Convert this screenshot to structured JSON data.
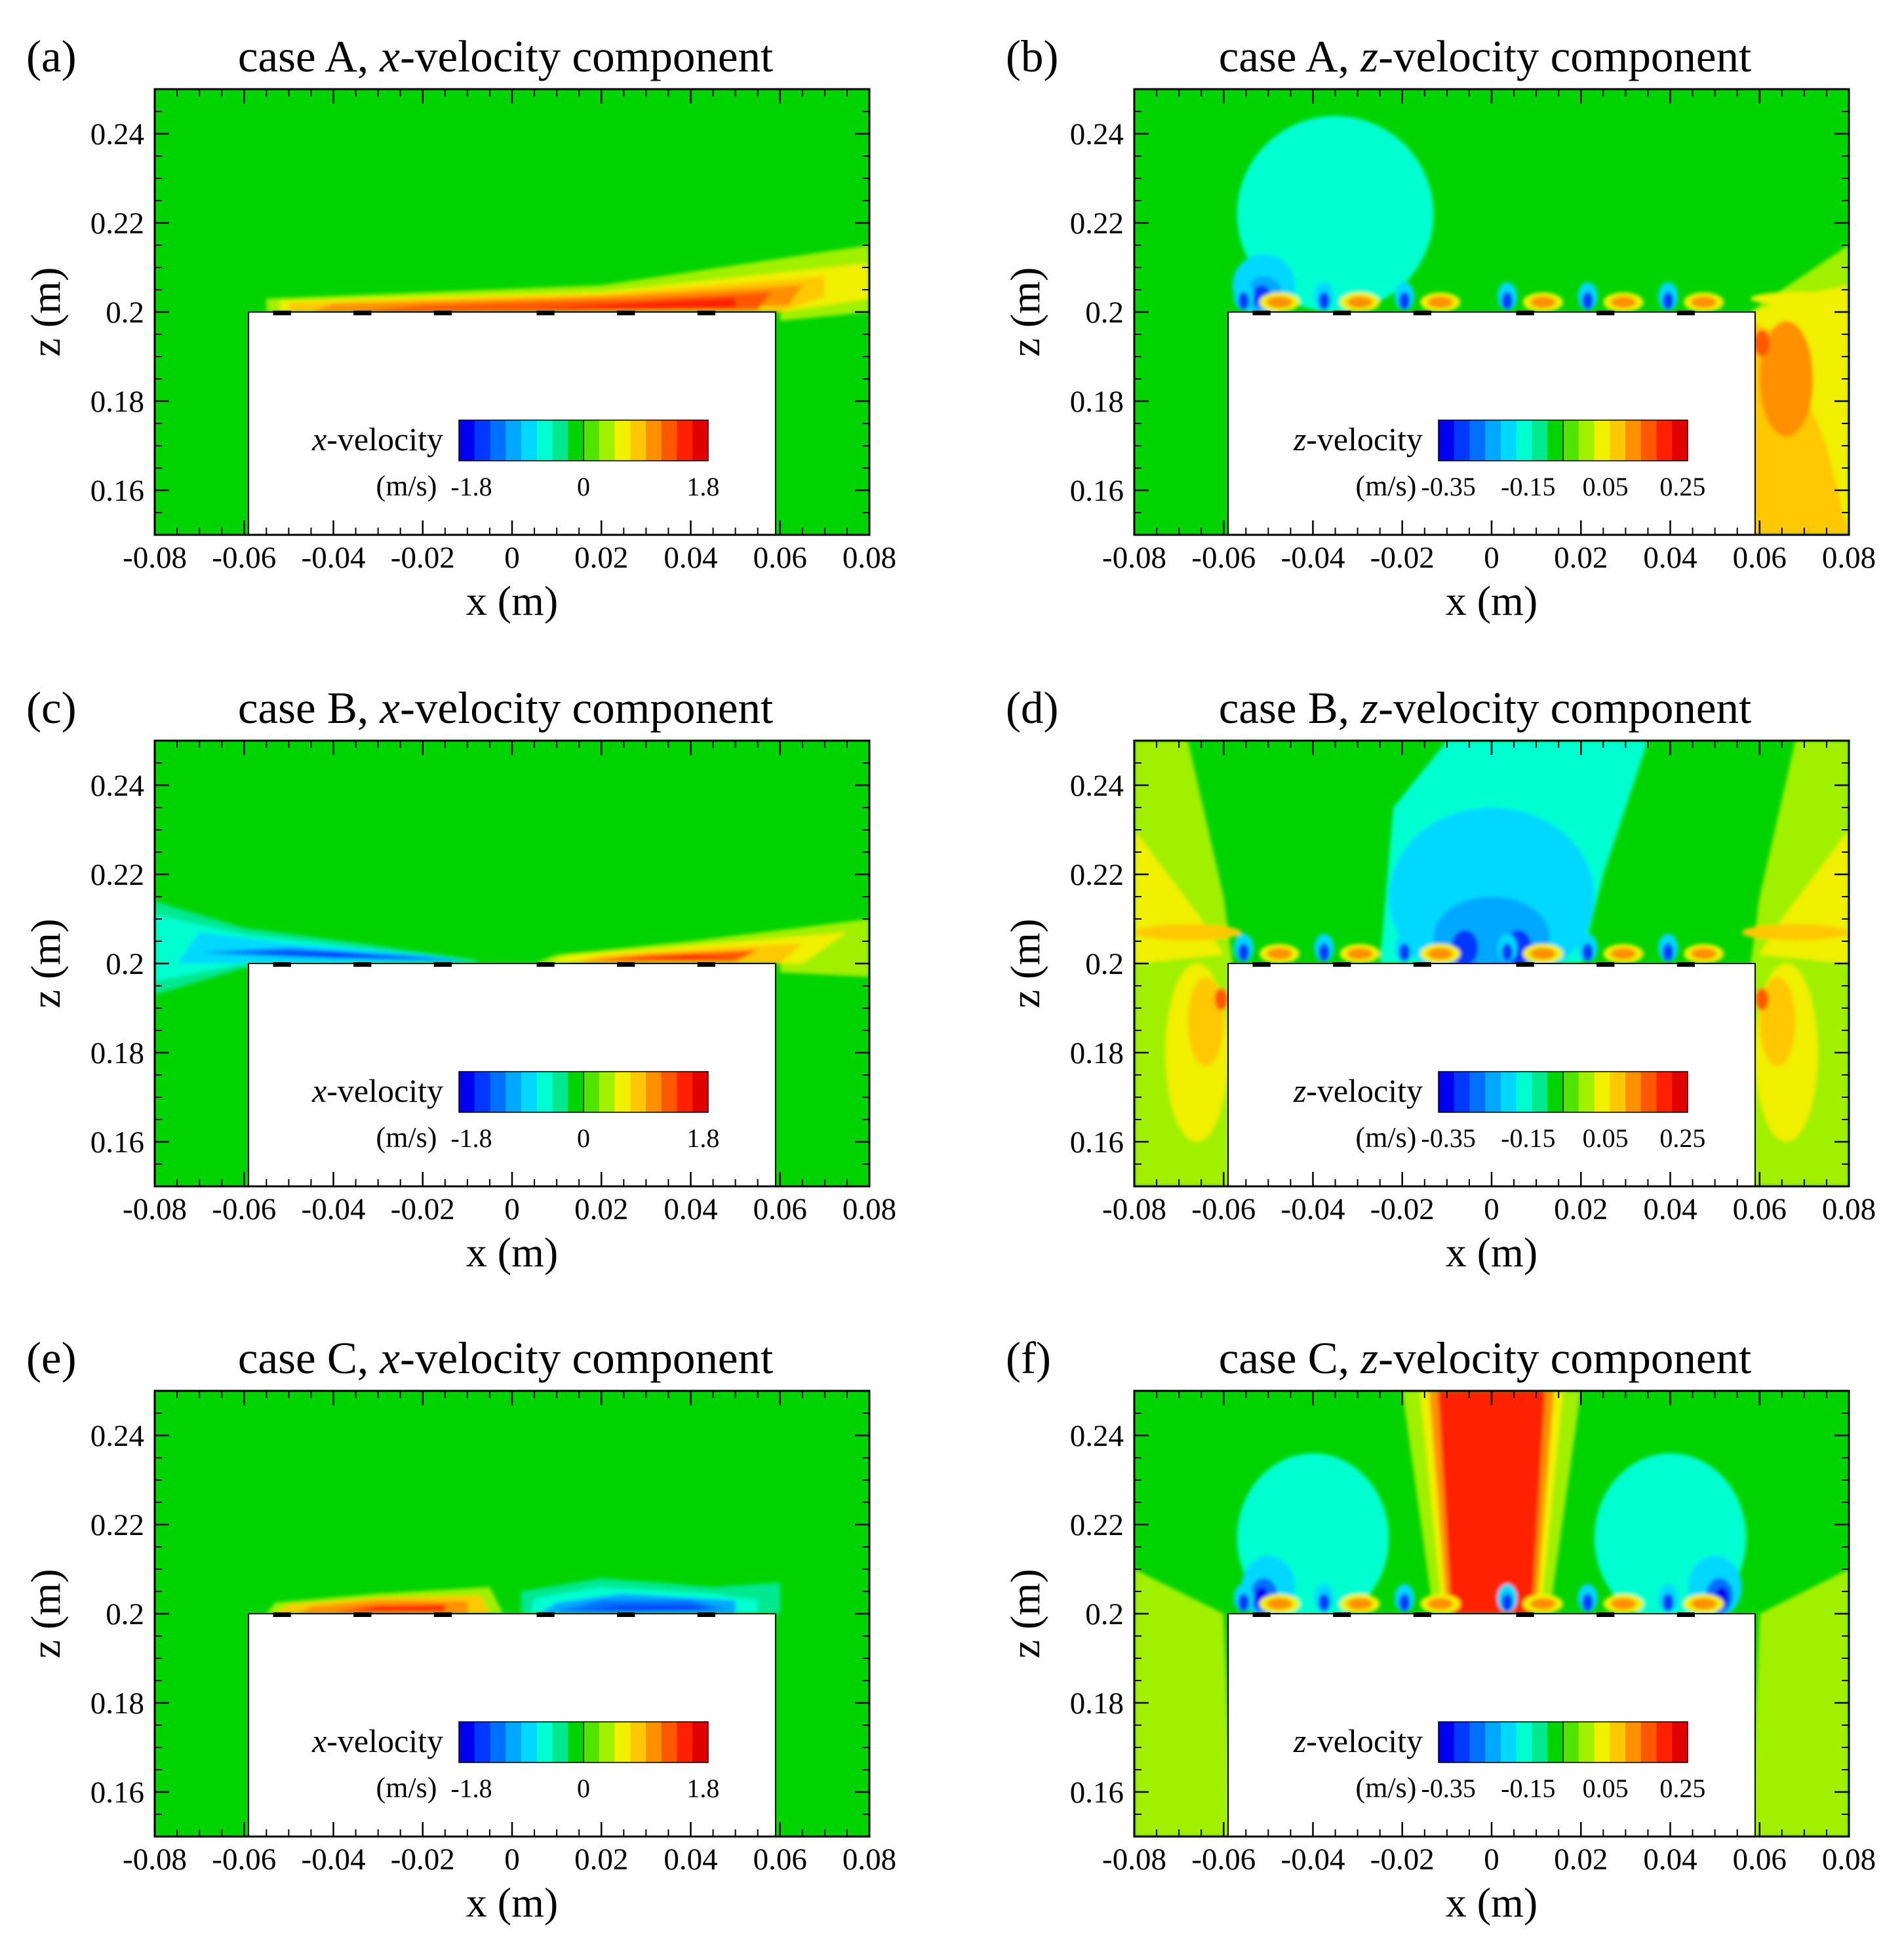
{
  "colors": {
    "background_field": "#00d400",
    "solid_body": "#ffffff",
    "colormap": [
      "#0000f0",
      "#0038ff",
      "#0070ff",
      "#00a8ff",
      "#00d8ff",
      "#00ffd0",
      "#00e890",
      "#00d400",
      "#50e400",
      "#a0f000",
      "#f0f000",
      "#ffc800",
      "#ff9000",
      "#ff5800",
      "#ff2000",
      "#e00000"
    ]
  },
  "panels": [
    {
      "label": "(a)",
      "case": "case A,",
      "component": "x",
      "suffix": "-velocity component",
      "colorbar": {
        "var_italic": "x",
        "var_rest": "-velocity",
        "unit": "(m/s)",
        "ticks": [
          "-1.8",
          "0",
          "1.8"
        ]
      },
      "flow": "A-x"
    },
    {
      "label": "(b)",
      "case": "case A,",
      "component": "z",
      "suffix": "-velocity component",
      "colorbar": {
        "var_italic": "z",
        "var_rest": "-velocity",
        "unit": "(m/s)",
        "ticks": [
          "-0.35",
          "-0.15",
          "0.05",
          "0.25"
        ]
      },
      "flow": "A-z"
    },
    {
      "label": "(c)",
      "case": "case B,",
      "component": "x",
      "suffix": "-velocity component",
      "colorbar": {
        "var_italic": "x",
        "var_rest": "-velocity",
        "unit": "(m/s)",
        "ticks": [
          "-1.8",
          "0",
          "1.8"
        ]
      },
      "flow": "B-x"
    },
    {
      "label": "(d)",
      "case": "case B,",
      "component": "z",
      "suffix": "-velocity component",
      "colorbar": {
        "var_italic": "z",
        "var_rest": "-velocity",
        "unit": "(m/s)",
        "ticks": [
          "-0.35",
          "-0.15",
          "0.05",
          "0.25"
        ]
      },
      "flow": "B-z"
    },
    {
      "label": "(e)",
      "case": "case C,",
      "component": "x",
      "suffix": "-velocity component",
      "colorbar": {
        "var_italic": "x",
        "var_rest": "-velocity",
        "unit": "(m/s)",
        "ticks": [
          "-1.8",
          "0",
          "1.8"
        ]
      },
      "flow": "C-x"
    },
    {
      "label": "(f)",
      "case": "case C,",
      "component": "z",
      "suffix": "-velocity component",
      "colorbar": {
        "var_italic": "z",
        "var_rest": "-velocity",
        "unit": "(m/s)",
        "ticks": [
          "-0.35",
          "-0.15",
          "0.05",
          "0.25"
        ]
      },
      "flow": "C-z"
    }
  ],
  "chart_data": {
    "type": "heatmap",
    "xlabel": "x (m)",
    "ylabel": "z (m)",
    "xlim": [
      -0.08,
      0.08
    ],
    "ylim": [
      0.15,
      0.25
    ],
    "xticks": [
      "-0.08",
      "-0.06",
      "-0.04",
      "-0.02",
      "0",
      "0.02",
      "0.04",
      "0.06",
      "0.08"
    ],
    "yticks": [
      "0.16",
      "0.18",
      "0.2",
      "0.22",
      "0.24"
    ],
    "xtick_values": [
      -0.08,
      -0.06,
      -0.04,
      -0.02,
      0,
      0.02,
      0.04,
      0.06,
      0.08
    ],
    "ytick_values": [
      0.16,
      0.18,
      0.2,
      0.22,
      0.24
    ],
    "solid_body": {
      "x": [
        -0.059,
        0.059
      ],
      "z": [
        0.15,
        0.2
      ]
    },
    "x_velocity_range": [
      -1.8,
      1.8
    ],
    "z_velocity_range": [
      -0.35,
      0.25
    ]
  }
}
